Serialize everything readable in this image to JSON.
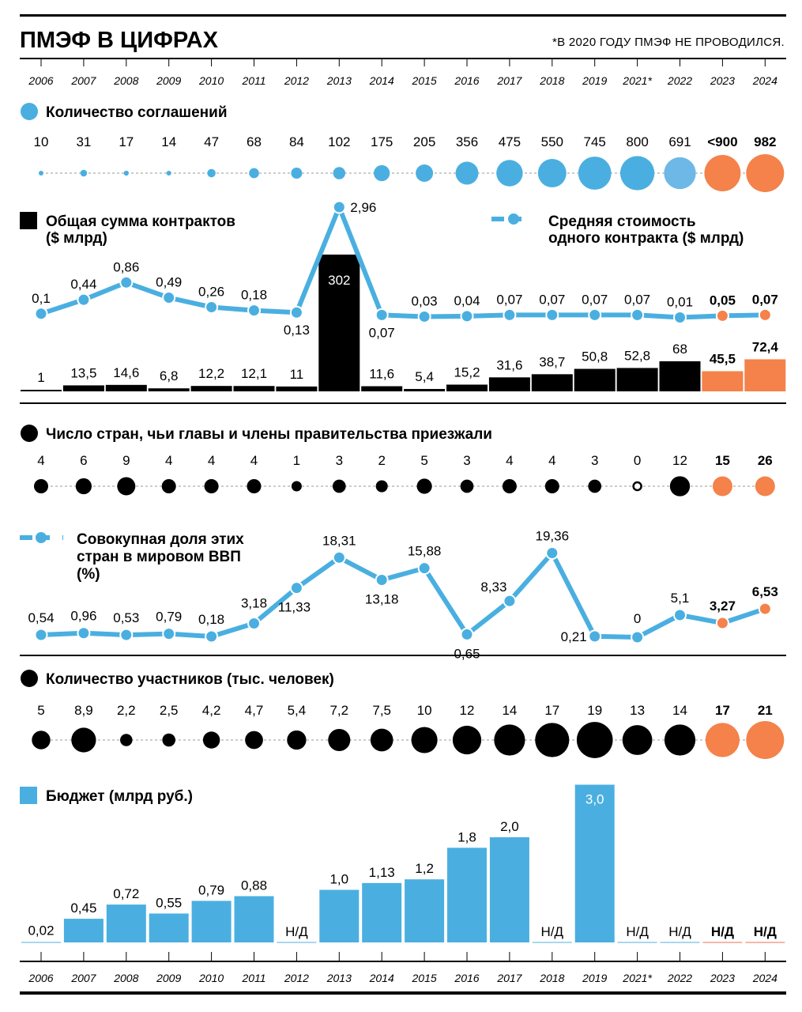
{
  "header": {
    "title": "ПМЭФ В ЦИФРАХ",
    "footnote": "*В 2020 ГОДУ ПМЭФ НЕ ПРОВОДИЛСЯ."
  },
  "colors": {
    "blue": "#4aafe0",
    "light_blue": "#6db8e6",
    "orange": "#f4824a",
    "black": "#000000"
  },
  "chart_data": [
    {
      "type": "scatter",
      "id": "agreements",
      "title": "Количество соглашений",
      "categories": [
        "2006",
        "2007",
        "2008",
        "2009",
        "2010",
        "2011",
        "2012",
        "2013",
        "2014",
        "2015",
        "2016",
        "2017",
        "2018",
        "2019",
        "2021*",
        "2022",
        "2023",
        "2024"
      ],
      "values": [
        10,
        31,
        17,
        14,
        47,
        68,
        84,
        102,
        175,
        205,
        356,
        475,
        550,
        745,
        800,
        691,
        900,
        982
      ],
      "labels": [
        "10",
        "31",
        "17",
        "14",
        "47",
        "68",
        "84",
        "102",
        "175",
        "205",
        "356",
        "475",
        "550",
        "745",
        "800",
        "691",
        "<900",
        "982"
      ],
      "bold_from_index": 16,
      "highlight": {
        "15": "light_blue",
        "16": "orange",
        "17": "orange"
      }
    },
    {
      "type": "bar",
      "id": "contracts_total",
      "title": "Общая сумма контрактов\n($ млрд)",
      "title_lines": [
        "Общая сумма контрактов",
        "($ млрд)"
      ],
      "categories": [
        "2006",
        "2007",
        "2008",
        "2009",
        "2010",
        "2011",
        "2012",
        "2013",
        "2014",
        "2015",
        "2016",
        "2017",
        "2018",
        "2019",
        "2021*",
        "2022",
        "2023",
        "2024"
      ],
      "values": [
        1,
        13.5,
        14.6,
        6.8,
        12.2,
        12.1,
        11,
        302,
        11.6,
        5.4,
        15.2,
        31.6,
        38.7,
        50.8,
        52.8,
        68,
        45.5,
        72.4
      ],
      "labels": [
        "1",
        "13,5",
        "14,6",
        "6,8",
        "12,2",
        "12,1",
        "11",
        "302",
        "11,6",
        "5,4",
        "15,2",
        "31,6",
        "38,7",
        "50,8",
        "52,8",
        "68",
        "45,5",
        "72,4"
      ],
      "bold_from_index": 16
    },
    {
      "type": "line",
      "id": "avg_contract",
      "title_lines": [
        "Средняя стоимость",
        "одного контракта ($ млрд)"
      ],
      "categories": [
        "2006",
        "2007",
        "2008",
        "2009",
        "2010",
        "2011",
        "2012",
        "2013",
        "2014",
        "2015",
        "2016",
        "2017",
        "2018",
        "2019",
        "2021*",
        "2022",
        "2023",
        "2024"
      ],
      "values": [
        0.1,
        0.44,
        0.86,
        0.49,
        0.26,
        0.18,
        0.13,
        2.96,
        0.07,
        0.03,
        0.04,
        0.07,
        0.07,
        0.07,
        0.07,
        0.01,
        0.05,
        0.07
      ],
      "labels": [
        "0,1",
        "0,44",
        "0,86",
        "0,49",
        "0,26",
        "0,18",
        "0,13",
        "2,96",
        "0,07",
        "0,03",
        "0,04",
        "0,07",
        "0,07",
        "0,07",
        "0,07",
        "0,01",
        "0,05",
        "0,07"
      ],
      "bold_from_index": 16
    },
    {
      "type": "scatter",
      "id": "countries",
      "title": "Число стран, чьи главы и члены правительства приезжали",
      "categories": [
        "2006",
        "2007",
        "2008",
        "2009",
        "2010",
        "2011",
        "2012",
        "2013",
        "2014",
        "2015",
        "2016",
        "2017",
        "2018",
        "2019",
        "2021*",
        "2022",
        "2023",
        "2024"
      ],
      "values": [
        4,
        6,
        9,
        4,
        4,
        4,
        1,
        3,
        2,
        5,
        3,
        4,
        4,
        3,
        0,
        12,
        15,
        26
      ],
      "labels": [
        "4",
        "6",
        "9",
        "4",
        "4",
        "4",
        "1",
        "3",
        "2",
        "5",
        "3",
        "4",
        "4",
        "3",
        "0",
        "12",
        "15",
        "26"
      ],
      "bold_from_index": 16
    },
    {
      "type": "line",
      "id": "gdp_share",
      "title_lines": [
        "Совокупная доля этих",
        "стран в мировом ВВП",
        "(%)"
      ],
      "categories": [
        "2006",
        "2007",
        "2008",
        "2009",
        "2010",
        "2011",
        "2012",
        "2013",
        "2014",
        "2015",
        "2016",
        "2017",
        "2018",
        "2019",
        "2021*",
        "2022",
        "2023",
        "2024"
      ],
      "values": [
        0.54,
        0.96,
        0.53,
        0.79,
        0.18,
        3.18,
        11.33,
        18.31,
        13.18,
        15.88,
        0.65,
        8.33,
        19.36,
        0.21,
        0,
        5.1,
        3.27,
        6.53
      ],
      "labels": [
        "0,54",
        "0,96",
        "0,53",
        "0,79",
        "0,18",
        "3,18",
        "11,33",
        "18,31",
        "13,18",
        "15,88",
        "0,65",
        "8,33",
        "19,36",
        "0,21",
        "0",
        "5,1",
        "3,27",
        "6,53"
      ],
      "bold_from_index": 16
    },
    {
      "type": "scatter",
      "id": "participants",
      "title": "Количество участников (тыс. человек)",
      "categories": [
        "2006",
        "2007",
        "2008",
        "2009",
        "2010",
        "2011",
        "2012",
        "2013",
        "2014",
        "2015",
        "2016",
        "2017",
        "2018",
        "2019",
        "2021*",
        "2022",
        "2023",
        "2024"
      ],
      "values": [
        5,
        8.9,
        2.2,
        2.5,
        4.2,
        4.7,
        5.4,
        7.2,
        7.5,
        10,
        12,
        14,
        17,
        19,
        13,
        14,
        17,
        21
      ],
      "labels": [
        "5",
        "8,9",
        "2,2",
        "2,5",
        "4,2",
        "4,7",
        "5,4",
        "7,2",
        "7,5",
        "10",
        "12",
        "14",
        "17",
        "19",
        "13",
        "14",
        "17",
        "21"
      ],
      "bold_from_index": 16
    },
    {
      "type": "bar",
      "id": "budget",
      "title": "Бюджет (млрд руб.)",
      "categories": [
        "2006",
        "2007",
        "2008",
        "2009",
        "2010",
        "2011",
        "2012",
        "2013",
        "2014",
        "2015",
        "2016",
        "2017",
        "2018",
        "2019",
        "2021*",
        "2022",
        "2023",
        "2024"
      ],
      "values": [
        0.02,
        0.45,
        0.72,
        0.55,
        0.79,
        0.88,
        null,
        1.0,
        1.13,
        1.2,
        1.8,
        2.0,
        null,
        3.0,
        null,
        null,
        null,
        null
      ],
      "labels": [
        "0,02",
        "0,45",
        "0,72",
        "0,55",
        "0,79",
        "0,88",
        "Н/Д",
        "1,0",
        "1,13",
        "1,2",
        "1,8",
        "2,0",
        "Н/Д",
        "3,0",
        "Н/Д",
        "Н/Д",
        "Н/Д",
        "Н/Д"
      ],
      "bold_from_index": 16
    }
  ],
  "years": [
    "2006",
    "2007",
    "2008",
    "2009",
    "2010",
    "2011",
    "2012",
    "2013",
    "2014",
    "2015",
    "2016",
    "2017",
    "2018",
    "2019",
    "2021*",
    "2022",
    "2023",
    "2024"
  ]
}
